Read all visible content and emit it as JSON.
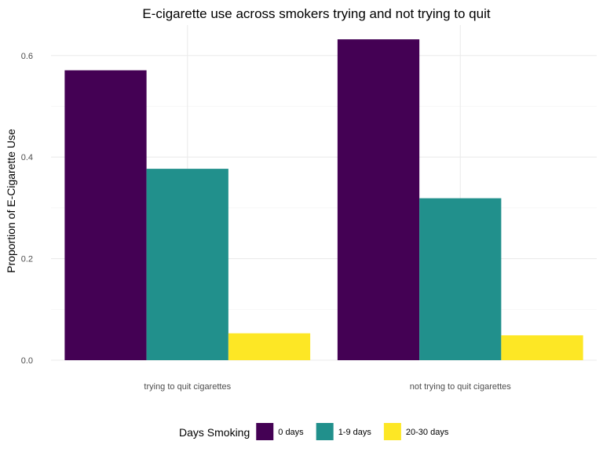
{
  "chart_data": {
    "type": "bar",
    "title": "E-cigarette use across smokers trying and not trying to quit",
    "xlabel": "",
    "ylabel": "Proportion of E-Cigarette Use",
    "categories": [
      "trying to quit cigarettes",
      "not trying to quit cigarettes"
    ],
    "series": [
      {
        "name": "0 days",
        "values": [
          0.571,
          0.632
        ],
        "color": "#440154"
      },
      {
        "name": "1-9 days",
        "values": [
          0.377,
          0.319
        ],
        "color": "#21908C"
      },
      {
        "name": "20-30 days",
        "values": [
          0.053,
          0.049
        ],
        "color": "#FDE725"
      }
    ],
    "yticks": [
      0.0,
      0.2,
      0.4,
      0.6
    ],
    "ytick_labels": [
      "0.0",
      "0.2",
      "0.4",
      "0.6"
    ],
    "ylim": [
      0,
      0.66
    ],
    "grid": true,
    "legend": {
      "title": "Days Smoking",
      "position": "bottom"
    }
  }
}
